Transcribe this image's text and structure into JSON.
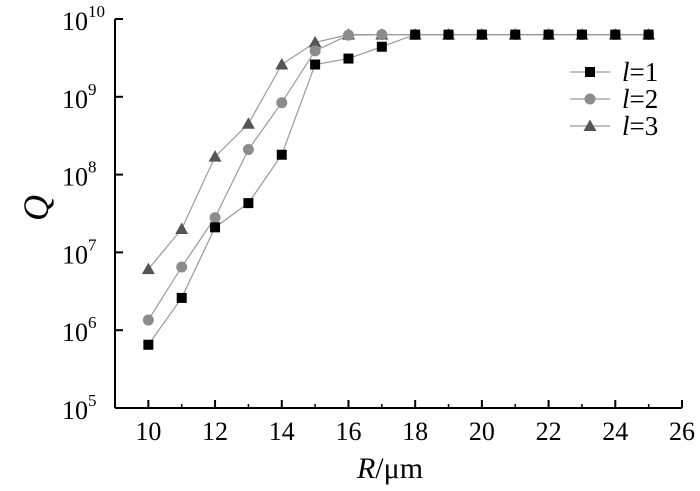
{
  "chart_data": {
    "type": "line",
    "title": "",
    "xlabel": "R/μm",
    "xlabel_var": "R",
    "xlabel_unit": "/μm",
    "ylabel": "Q",
    "x_scale": "linear",
    "y_scale": "log",
    "xlim": [
      9,
      26
    ],
    "ylim_exp": [
      5,
      10
    ],
    "xticks": [
      10,
      12,
      14,
      16,
      18,
      20,
      22,
      24,
      26
    ],
    "yticks": [
      {
        "base": "10",
        "exp": "5"
      },
      {
        "base": "10",
        "exp": "6"
      },
      {
        "base": "10",
        "exp": "7"
      },
      {
        "base": "10",
        "exp": "8"
      },
      {
        "base": "10",
        "exp": "9"
      },
      {
        "base": "10",
        "exp": "10"
      }
    ],
    "grid": false,
    "legend_position": "top-right",
    "x": [
      10,
      11,
      12,
      13,
      14,
      15,
      16,
      17,
      18,
      19,
      20,
      21,
      22,
      23,
      24,
      25
    ],
    "series": [
      {
        "name": "l=1",
        "name_var": "l",
        "name_rest": "=1",
        "marker": "square",
        "color": "#000000",
        "values": [
          650000.0,
          2600000.0,
          21000000.0,
          43000000.0,
          180000000.0,
          2600000000.0,
          3100000000.0,
          4400000000.0,
          6300000000.0,
          6300000000.0,
          6300000000.0,
          6300000000.0,
          6300000000.0,
          6300000000.0,
          6300000000.0,
          6300000000.0
        ]
      },
      {
        "name": "l=2",
        "name_var": "l",
        "name_rest": "=2",
        "marker": "circle",
        "color": "#8c8c8c",
        "values": [
          1350000.0,
          6500000.0,
          28000000.0,
          210000000.0,
          840000000.0,
          3900000000.0,
          6200000000.0,
          6300000000.0,
          6300000000.0,
          6300000000.0,
          6300000000.0,
          6300000000.0,
          6300000000.0,
          6300000000.0,
          6300000000.0,
          6300000000.0
        ]
      },
      {
        "name": "l=3",
        "name_var": "l",
        "name_rest": "=3",
        "marker": "triangle",
        "color": "#555555",
        "values": [
          6100000.0,
          20000000.0,
          170000000.0,
          450000000.0,
          2600000000.0,
          5000000000.0,
          6300000000.0,
          6300000000.0,
          6300000000.0,
          6300000000.0,
          6300000000.0,
          6300000000.0,
          6300000000.0,
          6300000000.0,
          6300000000.0,
          6300000000.0
        ]
      }
    ]
  }
}
